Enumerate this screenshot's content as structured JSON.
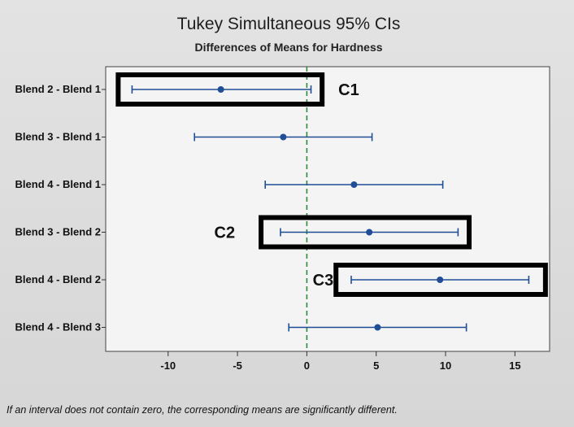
{
  "chart_data": {
    "type": "interval",
    "title": "Tukey Simultaneous 95% CIs",
    "subtitle": "Differences of Means for Hardness",
    "xlim": [
      -14.5,
      17.5
    ],
    "xticks": [
      -10,
      -5,
      0,
      5,
      10,
      15
    ],
    "xtick_labels": [
      "-10",
      "-5",
      "0",
      "5",
      "10",
      "15"
    ],
    "reference_line": 0,
    "comparisons": [
      {
        "label": "Blend 2 - Blend 1",
        "mean": -6.2,
        "lower": -12.6,
        "upper": 0.3
      },
      {
        "label": "Blend 3 - Blend 1",
        "mean": -1.7,
        "lower": -8.1,
        "upper": 4.7
      },
      {
        "label": "Blend 4 - Blend 1",
        "mean": 3.4,
        "lower": -3.0,
        "upper": 9.8
      },
      {
        "label": "Blend 3 - Blend 2",
        "mean": 4.5,
        "lower": -1.9,
        "upper": 10.9
      },
      {
        "label": "Blend 4 - Blend 2",
        "mean": 9.6,
        "lower": 3.2,
        "upper": 16.0
      },
      {
        "label": "Blend 4 - Blend 3",
        "mean": 5.1,
        "lower": -1.3,
        "upper": 11.5
      }
    ],
    "highlight_boxes": [
      {
        "label": "C1",
        "row": 0,
        "from": -13.6,
        "to": 1.1
      },
      {
        "label": "C2",
        "row": 3,
        "from": -3.3,
        "to": 11.7
      },
      {
        "label": "C3",
        "row": 4,
        "from": 2.1,
        "to": 17.2
      }
    ],
    "footnote": "If an interval does not contain zero, the corresponding means are significantly different.",
    "colors": {
      "interval": "#1f4e96",
      "reference": "#2e8b3a",
      "box": "#000000",
      "plot_bg": "#f4f4f4"
    }
  }
}
